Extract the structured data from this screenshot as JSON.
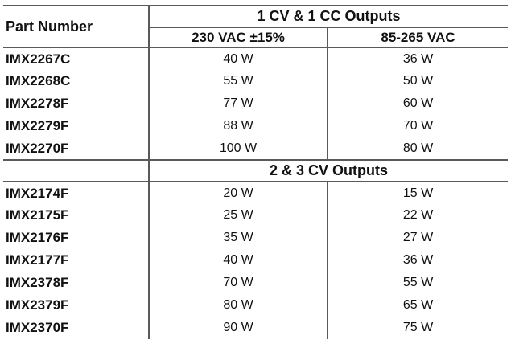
{
  "table": {
    "part_number_header": "Part Number",
    "group1_header": "1 CV & 1 CC Outputs",
    "col_230_header": "230 VAC ±15%",
    "col_85_header": "85-265 VAC",
    "group2_header": "2 & 3 CV Outputs",
    "border_color": "#5a5a5a",
    "text_color": "#111111",
    "background": "#ffffff",
    "section1_rows": [
      {
        "part": "IMX2267C",
        "v230": "40 W",
        "v85": "36 W"
      },
      {
        "part": "IMX2268C",
        "v230": "55 W",
        "v85": "50 W"
      },
      {
        "part": "IMX2278F",
        "v230": "77 W",
        "v85": "60 W"
      },
      {
        "part": "IMX2279F",
        "v230": "88 W",
        "v85": "70 W"
      },
      {
        "part": "IMX2270F",
        "v230": "100 W",
        "v85": "80 W"
      }
    ],
    "section2_rows": [
      {
        "part": "IMX2174F",
        "v230": "20 W",
        "v85": "15 W"
      },
      {
        "part": "IMX2175F",
        "v230": "25 W",
        "v85": "22 W"
      },
      {
        "part": "IMX2176F",
        "v230": "35 W",
        "v85": "27 W"
      },
      {
        "part": "IMX2177F",
        "v230": "40 W",
        "v85": "36 W"
      },
      {
        "part": "IMX2378F",
        "v230": "70 W",
        "v85": "55 W"
      },
      {
        "part": "IMX2379F",
        "v230": "80 W",
        "v85": "65 W"
      },
      {
        "part": "IMX2370F",
        "v230": "90 W",
        "v85": "75 W"
      }
    ]
  }
}
